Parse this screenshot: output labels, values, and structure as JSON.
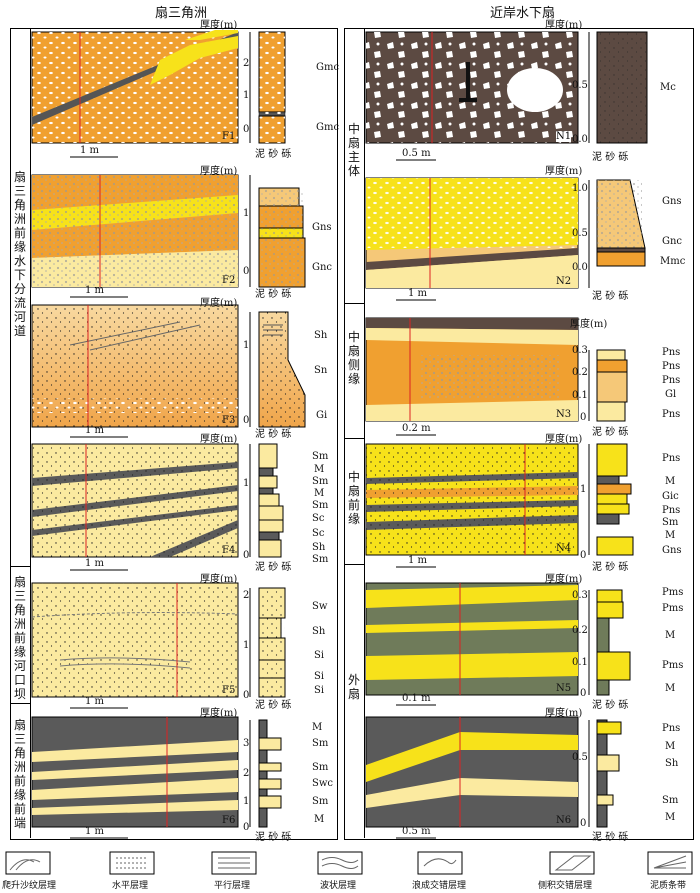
{
  "headers": {
    "left": "扇三角洲",
    "right": "近岸水下扇"
  },
  "groups": {
    "fan_delta_channel": "扇三角洲前缘水下分流河道",
    "fan_delta_mouthbar": "扇三角洲前缘河口坝",
    "fan_delta_front": "扇三角洲前缘前端",
    "main_fan": "中扇主体",
    "lateral_fan": "中扇侧缘",
    "front_fan": "中扇前缘",
    "outer_fan": "外扇"
  },
  "common": {
    "thickness": "厚度(m)",
    "mud": "泥",
    "sand": "砂",
    "gravel": "砾"
  },
  "panels": {
    "F1": {
      "id": "F1",
      "scale": "1 m",
      "ticks": [
        "2",
        "1",
        "0"
      ],
      "codes": [
        "Gmc",
        "Gmc"
      ]
    },
    "F2": {
      "id": "F2",
      "scale": "1 m",
      "ticks": [
        "1",
        "0"
      ],
      "codes": [
        "Gns",
        "Gnc"
      ]
    },
    "F3": {
      "id": "F3",
      "scale": "1 m",
      "ticks": [
        "1",
        "0"
      ],
      "codes": [
        "Sh",
        "Sn",
        "Gi"
      ]
    },
    "F4": {
      "id": "F4",
      "scale": "1 m",
      "ticks": [
        "1",
        "0"
      ],
      "codes": [
        "Sm",
        "M",
        "Sm",
        "M",
        "Sm",
        "Sc",
        "Sc",
        "Sh",
        "Sm"
      ]
    },
    "F5": {
      "id": "F5",
      "scale": "1 m",
      "ticks": [
        "2",
        "1",
        "0"
      ],
      "codes": [
        "Sw",
        "Sh",
        "Si",
        "Si",
        "Si"
      ]
    },
    "F6": {
      "id": "F6",
      "scale": "1 m",
      "ticks": [
        "3",
        "2",
        "1",
        "0"
      ],
      "codes": [
        "M",
        "Sm",
        "Sm",
        "Swc",
        "Sm",
        "M"
      ]
    },
    "N1": {
      "id": "N1",
      "scale": "0.5 m",
      "ticks": [
        "0.5",
        "0.0"
      ],
      "codes": [
        "Mc"
      ]
    },
    "N2": {
      "id": "N2",
      "scale": "1 m",
      "ticks": [
        "1.0",
        "0.5",
        "0.0"
      ],
      "codes": [
        "Gns",
        "Gnc",
        "Mmc"
      ]
    },
    "N3": {
      "id": "N3",
      "scale": "0.2 m",
      "ticks": [
        "0.3",
        "0.2",
        "0.1",
        "0"
      ],
      "codes": [
        "Pns",
        "Pns",
        "Pns",
        "Gl",
        "Pns"
      ]
    },
    "N4": {
      "id": "N4",
      "scale": "1 m",
      "ticks": [
        "1",
        "0"
      ],
      "codes": [
        "Pns",
        "M",
        "Gic",
        "Pns",
        "Sm",
        "M",
        "Gns"
      ]
    },
    "N5": {
      "id": "N5",
      "scale": "0.1 m",
      "ticks": [
        "0.3",
        "0.2",
        "0.1",
        "0"
      ],
      "codes": [
        "Pms",
        "Pms",
        "M",
        "Pms",
        "M"
      ]
    },
    "N6": {
      "id": "N6",
      "scale": "0.5 m",
      "ticks": [
        "0.5",
        "0"
      ],
      "codes": [
        "Pns",
        "M",
        "Sh",
        "Sm",
        "M"
      ]
    }
  },
  "legend": [
    "爬升沙纹层理",
    "水平层理",
    "平行层理",
    "波状层理",
    "浪成交错层理",
    "侧积交错层理",
    "泥质条带"
  ],
  "colors": {
    "orange": "#f0a030",
    "light_orange": "#f5c878",
    "sand": "#fbeaa0",
    "yellow": "#f7e21a",
    "dark_gray": "#5a5a5a",
    "brown_gray": "#5c4a42",
    "olive": "#6f7b5a",
    "red": "#dd2222"
  }
}
